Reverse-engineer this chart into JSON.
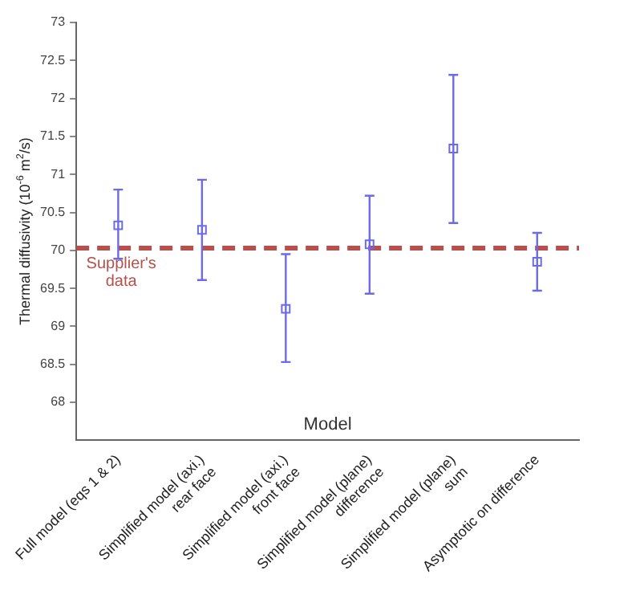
{
  "chart_data": {
    "type": "scatter",
    "xlabel": "Model",
    "ylabel": "Thermal diffusivity (10$^{-6}$ m$^{2}$/s)",
    "categories": [
      "Full model (eqs 1 & 2)",
      "Simplified model (axi.) rear face",
      "Simplified model (axi.) front face",
      "Simplified model (plane) difference",
      "Simplified model (plane) sum",
      "Asymptotic on difference"
    ],
    "series": [
      {
        "color": "#6b6bea",
        "values": [
          70.33,
          70.27,
          69.23,
          70.08,
          71.34,
          69.85
        ],
        "errors": [
          [
            69.89,
            70.8
          ],
          [
            69.61,
            70.93
          ],
          [
            68.53,
            69.95
          ],
          [
            69.43,
            70.72
          ],
          [
            70.36,
            72.31
          ],
          [
            69.47,
            70.23
          ]
        ]
      }
    ],
    "marker": "square",
    "ylim": [
      67.5,
      73
    ],
    "yticks": [
      68,
      68.5,
      69,
      69.5,
      70,
      70.5,
      71,
      71.5,
      72,
      72.5,
      73
    ],
    "ref_lines": [
      {
        "axis": "y",
        "value": 70.03,
        "label": "Supplier's data",
        "color": "#b5504c",
        "line_style": "dashed"
      }
    ],
    "grid": false,
    "legend": false
  }
}
